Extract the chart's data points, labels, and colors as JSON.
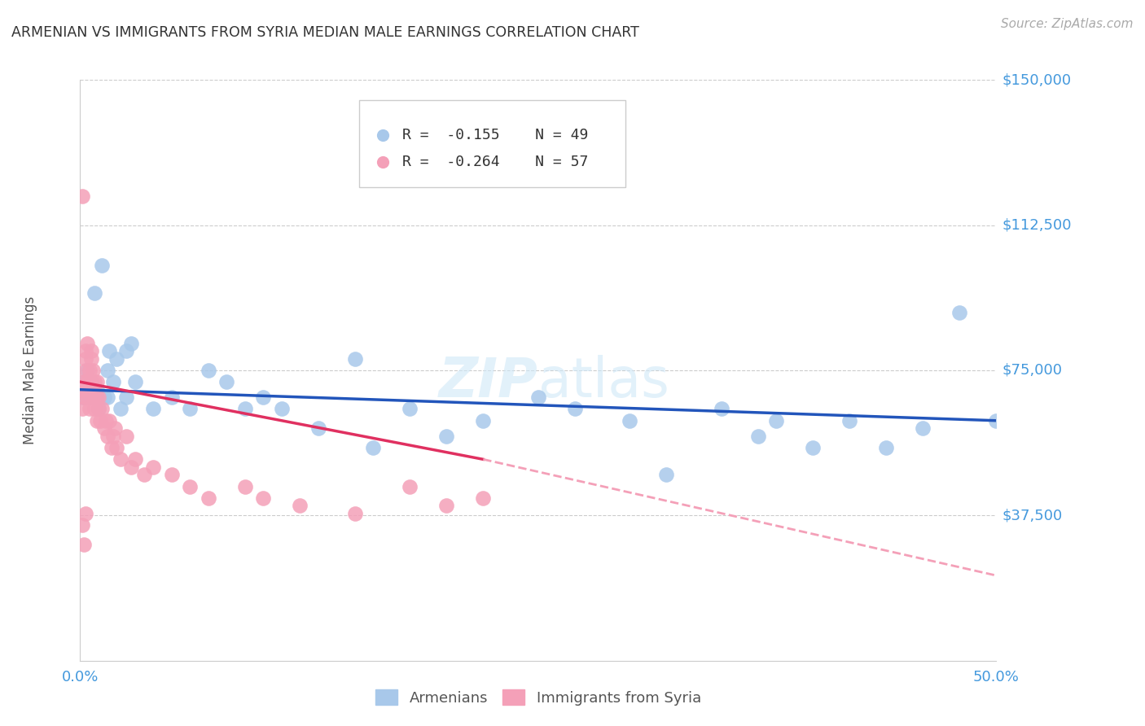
{
  "title": "ARMENIAN VS IMMIGRANTS FROM SYRIA MEDIAN MALE EARNINGS CORRELATION CHART",
  "source": "Source: ZipAtlas.com",
  "ylabel": "Median Male Earnings",
  "ylim": [
    0,
    150000
  ],
  "xlim": [
    0.0,
    0.5
  ],
  "watermark": "ZIPatlas",
  "legend_armenians_R": "-0.155",
  "legend_armenians_N": "49",
  "legend_syria_R": "-0.264",
  "legend_syria_N": "57",
  "armenian_color": "#a8c8ea",
  "syria_color": "#f4a0b8",
  "armenian_line_color": "#2255bb",
  "syria_line_color": "#e03060",
  "syria_line_dashed_color": "#f4a0b8",
  "title_color": "#333333",
  "axis_color": "#4499dd",
  "grid_color": "#cccccc",
  "ytick_vals": [
    37500,
    75000,
    112500,
    150000
  ],
  "ytick_labels": [
    "$37,500",
    "$75,000",
    "$112,500",
    "$150,000"
  ],
  "armenians_x": [
    0.001,
    0.002,
    0.003,
    0.004,
    0.005,
    0.006,
    0.007,
    0.008,
    0.009,
    0.01,
    0.012,
    0.013,
    0.015,
    0.015,
    0.016,
    0.018,
    0.02,
    0.022,
    0.025,
    0.025,
    0.028,
    0.03,
    0.04,
    0.05,
    0.06,
    0.07,
    0.08,
    0.09,
    0.1,
    0.11,
    0.13,
    0.15,
    0.16,
    0.18,
    0.2,
    0.22,
    0.25,
    0.27,
    0.3,
    0.32,
    0.35,
    0.37,
    0.38,
    0.4,
    0.42,
    0.44,
    0.46,
    0.48,
    0.5
  ],
  "armenians_y": [
    68000,
    72000,
    70000,
    75000,
    68000,
    72000,
    68000,
    95000,
    70000,
    65000,
    102000,
    68000,
    68000,
    75000,
    80000,
    72000,
    78000,
    65000,
    80000,
    68000,
    82000,
    72000,
    65000,
    68000,
    65000,
    75000,
    72000,
    65000,
    68000,
    65000,
    60000,
    78000,
    55000,
    65000,
    58000,
    62000,
    68000,
    65000,
    62000,
    48000,
    65000,
    58000,
    62000,
    55000,
    62000,
    55000,
    60000,
    90000,
    62000
  ],
  "syria_x": [
    0.001,
    0.001,
    0.001,
    0.002,
    0.002,
    0.003,
    0.003,
    0.003,
    0.004,
    0.004,
    0.004,
    0.005,
    0.005,
    0.005,
    0.006,
    0.006,
    0.006,
    0.007,
    0.007,
    0.007,
    0.008,
    0.008,
    0.008,
    0.009,
    0.009,
    0.009,
    0.01,
    0.01,
    0.011,
    0.012,
    0.013,
    0.014,
    0.015,
    0.016,
    0.017,
    0.018,
    0.019,
    0.02,
    0.022,
    0.025,
    0.028,
    0.03,
    0.035,
    0.04,
    0.05,
    0.06,
    0.07,
    0.09,
    0.1,
    0.12,
    0.15,
    0.18,
    0.2,
    0.22,
    0.001,
    0.002,
    0.003
  ],
  "syria_y": [
    120000,
    65000,
    70000,
    72000,
    68000,
    78000,
    75000,
    80000,
    72000,
    82000,
    68000,
    75000,
    70000,
    65000,
    78000,
    72000,
    80000,
    70000,
    75000,
    68000,
    72000,
    65000,
    70000,
    68000,
    62000,
    72000,
    65000,
    68000,
    62000,
    65000,
    60000,
    62000,
    58000,
    62000,
    55000,
    58000,
    60000,
    55000,
    52000,
    58000,
    50000,
    52000,
    48000,
    50000,
    48000,
    45000,
    42000,
    45000,
    42000,
    40000,
    38000,
    45000,
    40000,
    42000,
    35000,
    30000,
    38000
  ]
}
